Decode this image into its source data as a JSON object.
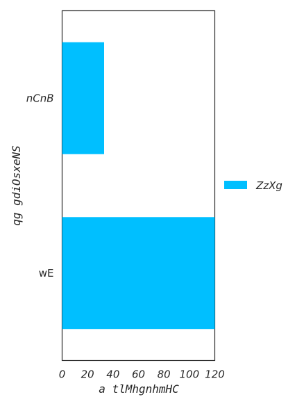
{
  "chart_data": {
    "type": "bar",
    "orientation": "horizontal",
    "categories": [
      "nCnB",
      "wE"
    ],
    "category_italic": [
      true,
      false
    ],
    "series": [
      {
        "name": "ZzXg",
        "values": [
          33,
          120
        ],
        "color": "#00bfff"
      }
    ],
    "xlabel": "a tlMhgnhmHC",
    "ylabel": "qg gdiOsxeNS",
    "xlim": [
      0,
      120
    ],
    "xticks": [
      "0",
      "20",
      "40",
      "60",
      "80",
      "100",
      "120"
    ],
    "grid": false,
    "legend_position": "right"
  }
}
